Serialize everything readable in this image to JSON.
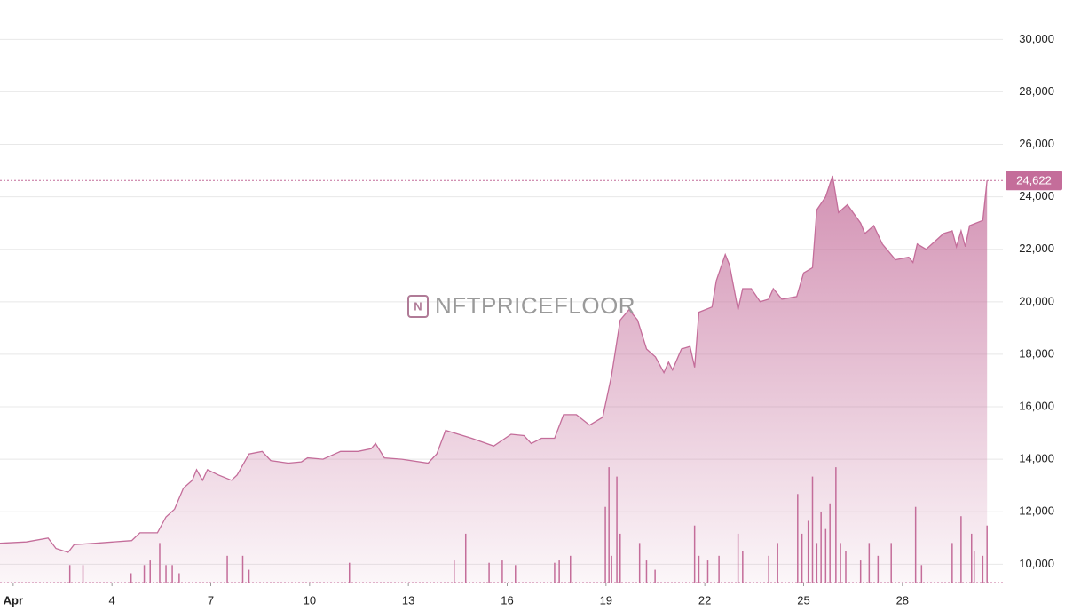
{
  "watermark": "NFTPRICEFLOOR",
  "chart_data": [
    {
      "type": "area",
      "color": "#c46d9a",
      "x": [
        0.6,
        1.4,
        2.06,
        2.3,
        2.67,
        2.85,
        3.5,
        4.6,
        4.85,
        5.38,
        5.64,
        5.9,
        6.17,
        6.44,
        6.57,
        6.75,
        6.9,
        7.23,
        7.63,
        7.8,
        8.16,
        8.56,
        8.82,
        9.35,
        9.75,
        9.94,
        10.41,
        10.94,
        11.47,
        11.87,
        12.0,
        12.27,
        12.8,
        13.6,
        13.86,
        14.13,
        14.4,
        14.92,
        15.59,
        16.12,
        16.51,
        16.73,
        17.04,
        17.44,
        17.71,
        18.1,
        18.5,
        18.9,
        19.17,
        19.43,
        19.7,
        19.96,
        20.23,
        20.5,
        20.76,
        20.9,
        21.02,
        21.29,
        21.55,
        21.69,
        21.82,
        22.22,
        22.35,
        22.62,
        22.75,
        23.01,
        23.15,
        23.41,
        23.68,
        23.94,
        24.08,
        24.34,
        24.79,
        25.0,
        25.27,
        25.4,
        25.67,
        25.88,
        26.06,
        26.33,
        26.73,
        26.86,
        27.13,
        27.39,
        27.79,
        28.19,
        28.32,
        28.45,
        28.72,
        29.25,
        29.51,
        29.64,
        29.78,
        29.91,
        30.04,
        30.44,
        30.57
      ],
      "values": [
        10800,
        10850,
        11000,
        10600,
        10450,
        10750,
        10800,
        10900,
        11200,
        11200,
        11800,
        12100,
        12900,
        13200,
        13600,
        13200,
        13600,
        13400,
        13200,
        13400,
        14200,
        14300,
        13950,
        13850,
        13900,
        14050,
        14000,
        14300,
        14300,
        14400,
        14600,
        14050,
        14000,
        13850,
        14200,
        15100,
        15000,
        14800,
        14500,
        14950,
        14900,
        14600,
        14800,
        14800,
        15700,
        15700,
        15300,
        15600,
        17200,
        19300,
        19700,
        19300,
        18200,
        17900,
        17300,
        17700,
        17400,
        18200,
        18300,
        17500,
        19600,
        19800,
        20800,
        21800,
        21400,
        19700,
        20500,
        20500,
        20000,
        20100,
        20500,
        20100,
        20200,
        21100,
        21300,
        23500,
        24000,
        24800,
        23400,
        23700,
        23000,
        22600,
        22900,
        22200,
        21600,
        21700,
        21500,
        22200,
        22000,
        22600,
        22700,
        22100,
        22700,
        22100,
        22900,
        23100,
        24622
      ],
      "xlim": [
        0.6,
        31.05
      ],
      "xticks": [
        {
          "value": 1,
          "label": "Apr"
        },
        4,
        7,
        10,
        13,
        16,
        19,
        22,
        25,
        28
      ],
      "ylim": [
        9300,
        31500
      ],
      "yticks": [
        {
          "value": 10000,
          "label": "10,000"
        },
        {
          "value": 12000,
          "label": "12,000"
        },
        {
          "value": 14000,
          "label": "14,000"
        },
        {
          "value": 16000,
          "label": "16,000"
        },
        {
          "value": 18000,
          "label": "18,000"
        },
        {
          "value": 20000,
          "label": "20,000"
        },
        {
          "value": 22000,
          "label": "22,000"
        },
        {
          "value": 24000,
          "label": "24,000"
        },
        {
          "value": 26000,
          "label": "26,000"
        },
        {
          "value": 28000,
          "label": "28,000"
        },
        {
          "value": 30000,
          "label": "30,000"
        }
      ],
      "grid": true,
      "last_price": {
        "value": 24622,
        "label": "24,622"
      }
    },
    {
      "type": "bar",
      "color": "#c46d9a",
      "axis": "y2",
      "x": [
        2.72,
        3.12,
        4.58,
        4.98,
        5.16,
        5.45,
        5.64,
        5.83,
        6.04,
        7.5,
        7.97,
        8.16,
        11.21,
        14.39,
        14.74,
        15.45,
        15.85,
        16.25,
        17.44,
        17.58,
        17.92,
        18.98,
        19.09,
        19.17,
        19.33,
        19.43,
        20.02,
        20.23,
        20.49,
        21.69,
        21.82,
        22.09,
        22.43,
        23.01,
        23.15,
        23.94,
        24.21,
        24.82,
        24.95,
        25.14,
        25.27,
        25.4,
        25.53,
        25.67,
        25.8,
        25.98,
        26.12,
        26.28,
        26.73,
        26.99,
        27.26,
        27.66,
        28.4,
        28.58,
        29.51,
        29.78,
        30.1,
        30.18,
        30.44,
        30.57
      ],
      "values": [
        15,
        15,
        8,
        15,
        19,
        34,
        15,
        15,
        8,
        23,
        23,
        11,
        17,
        19,
        42,
        17,
        19,
        15,
        17,
        19,
        23,
        65,
        99,
        23,
        91,
        42,
        34,
        19,
        11,
        49,
        23,
        19,
        23,
        42,
        27,
        23,
        34,
        76,
        42,
        53,
        91,
        34,
        61,
        46,
        68,
        99,
        34,
        27,
        19,
        34,
        23,
        34,
        65,
        15,
        34,
        57,
        42,
        27,
        23,
        49
      ],
      "xlim": [
        0.6,
        31.05
      ],
      "y2lim": [
        0,
        500
      ]
    }
  ]
}
